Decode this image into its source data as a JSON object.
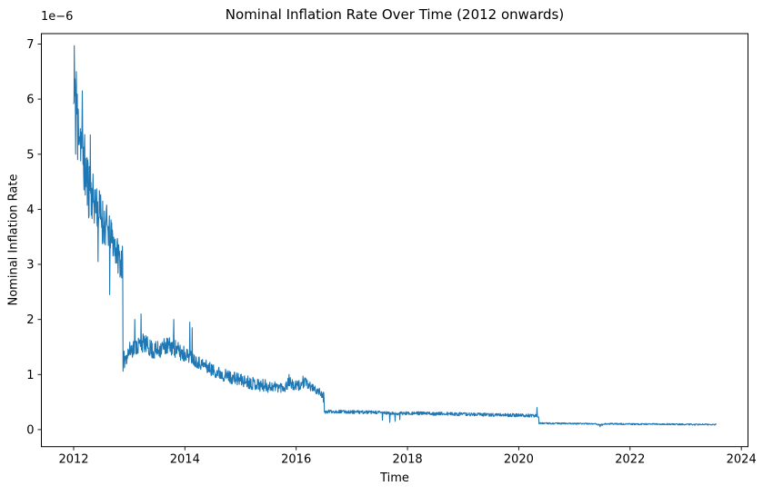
{
  "chart_data": {
    "type": "line",
    "title": "Nominal Inflation Rate Over Time (2012 onwards)",
    "xlabel": "Time",
    "ylabel": "Nominal Inflation Rate",
    "y_offset_label": "1e−6",
    "value_unit": "1e-6",
    "xlim": [
      2011.42,
      2024.12
    ],
    "ylim": [
      -0.31,
      7.19
    ],
    "xticks": [
      2012,
      2014,
      2016,
      2018,
      2020,
      2022,
      2024
    ],
    "yticks": [
      0,
      1,
      2,
      3,
      4,
      5,
      6,
      7
    ],
    "grid": false,
    "legend": "none",
    "background_color": "#ffffff",
    "text_color": "#000000",
    "spine_color": "#000000",
    "line_color": "#1f77b4",
    "series": [
      {
        "name": "Nominal Inflation Rate",
        "domain": [
          2012.0,
          2023.551
        ],
        "step": 0.006,
        "seed": 11,
        "trend": [
          [
            2012.0,
            5.9
          ],
          [
            2012.03,
            6.0
          ],
          [
            2012.06,
            5.75
          ],
          [
            2012.1,
            5.5
          ],
          [
            2012.16,
            5.1
          ],
          [
            2012.22,
            4.6
          ],
          [
            2012.3,
            4.3
          ],
          [
            2012.4,
            4.1
          ],
          [
            2012.5,
            3.85
          ],
          [
            2012.6,
            3.65
          ],
          [
            2012.7,
            3.45
          ],
          [
            2012.8,
            3.15
          ],
          [
            2012.883,
            3.0
          ],
          [
            2012.886,
            1.22
          ],
          [
            2012.95,
            1.35
          ],
          [
            2013.05,
            1.48
          ],
          [
            2013.15,
            1.52
          ],
          [
            2013.25,
            1.58
          ],
          [
            2013.35,
            1.5
          ],
          [
            2013.45,
            1.42
          ],
          [
            2013.55,
            1.47
          ],
          [
            2013.65,
            1.52
          ],
          [
            2013.8,
            1.5
          ],
          [
            2013.9,
            1.4
          ],
          [
            2014.0,
            1.38
          ],
          [
            2014.1,
            1.32
          ],
          [
            2014.2,
            1.25
          ],
          [
            2014.35,
            1.17
          ],
          [
            2014.5,
            1.08
          ],
          [
            2014.65,
            1.01
          ],
          [
            2014.8,
            0.96
          ],
          [
            2015.0,
            0.9
          ],
          [
            2015.2,
            0.85
          ],
          [
            2015.4,
            0.8
          ],
          [
            2015.6,
            0.78
          ],
          [
            2015.8,
            0.77
          ],
          [
            2015.88,
            0.88
          ],
          [
            2015.95,
            0.78
          ],
          [
            2016.05,
            0.8
          ],
          [
            2016.15,
            0.85
          ],
          [
            2016.25,
            0.78
          ],
          [
            2016.35,
            0.72
          ],
          [
            2016.45,
            0.66
          ],
          [
            2016.503,
            0.6
          ],
          [
            2016.506,
            0.31
          ],
          [
            2016.6,
            0.33
          ],
          [
            2017.0,
            0.32
          ],
          [
            2017.5,
            0.31
          ],
          [
            2017.75,
            0.29
          ],
          [
            2018.0,
            0.3
          ],
          [
            2018.5,
            0.29
          ],
          [
            2019.0,
            0.28
          ],
          [
            2019.5,
            0.27
          ],
          [
            2020.0,
            0.26
          ],
          [
            2020.33,
            0.25
          ],
          [
            2020.357,
            0.25
          ],
          [
            2020.36,
            0.115
          ],
          [
            2020.6,
            0.112
          ],
          [
            2021.0,
            0.11
          ],
          [
            2021.4,
            0.105
          ],
          [
            2021.46,
            0.08
          ],
          [
            2021.55,
            0.105
          ],
          [
            2022.0,
            0.1
          ],
          [
            2022.5,
            0.1
          ],
          [
            2023.0,
            0.095
          ],
          [
            2023.55,
            0.09
          ]
        ],
        "noise_segments": [
          [
            2012.0,
            2012.1,
            0.55
          ],
          [
            2012.1,
            2012.3,
            0.6
          ],
          [
            2012.3,
            2012.6,
            0.45
          ],
          [
            2012.6,
            2012.886,
            0.32
          ],
          [
            2012.886,
            2014.0,
            0.17
          ],
          [
            2014.0,
            2015.5,
            0.12
          ],
          [
            2015.5,
            2016.25,
            0.1
          ],
          [
            2016.25,
            2016.506,
            0.07
          ],
          [
            2016.506,
            2020.36,
            0.03
          ],
          [
            2020.36,
            2023.551,
            0.013
          ]
        ],
        "spikes": [
          [
            2012.012,
            6.97
          ],
          [
            2012.036,
            5.0
          ],
          [
            2012.048,
            6.5
          ],
          [
            2012.072,
            4.9
          ],
          [
            2012.155,
            6.15
          ],
          [
            2012.3,
            5.35
          ],
          [
            2012.44,
            3.05
          ],
          [
            2012.65,
            2.45
          ],
          [
            2012.85,
            2.8
          ],
          [
            2012.89,
            1.06
          ],
          [
            2013.1,
            2.0
          ],
          [
            2013.21,
            2.1
          ],
          [
            2013.8,
            2.0
          ],
          [
            2014.09,
            1.95
          ],
          [
            2014.13,
            1.85
          ],
          [
            2015.87,
            1.0
          ],
          [
            2016.12,
            0.97
          ],
          [
            2016.17,
            0.93
          ],
          [
            2016.49,
            0.5
          ],
          [
            2017.55,
            0.17
          ],
          [
            2017.68,
            0.13
          ],
          [
            2017.78,
            0.15
          ],
          [
            2017.86,
            0.18
          ],
          [
            2020.33,
            0.4
          ],
          [
            2021.46,
            0.05
          ]
        ]
      }
    ],
    "annotations": {
      "halving_drops": [
        2012.886,
        2016.506,
        2020.36
      ]
    }
  }
}
